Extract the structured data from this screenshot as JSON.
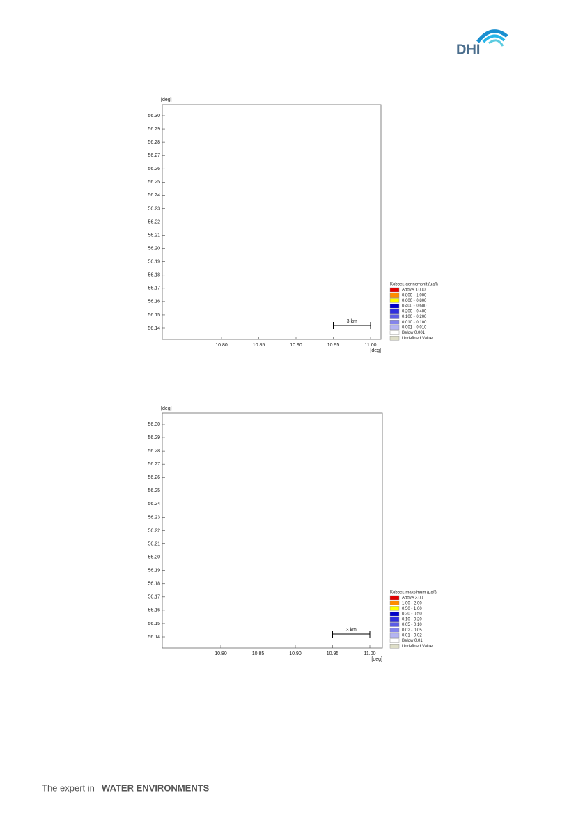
{
  "header": {
    "logo": "DHI"
  },
  "plots": [
    {
      "y_label": "[deg]",
      "x_label": "[deg]",
      "yticks": [
        "56.30",
        "56.29",
        "56.28",
        "56.27",
        "56.26",
        "56.25",
        "56.24",
        "56.23",
        "56.22",
        "56.21",
        "56.20",
        "56.19",
        "56.18",
        "56.17",
        "56.16",
        "56.15",
        "56.14"
      ],
      "xticks": [
        "10.80",
        "10.85",
        "10.90",
        "10.95",
        "11.00"
      ],
      "scale_bar": "3 km",
      "legend": {
        "title": "Kobber, gennemsnit (µg/l)",
        "items": [
          "Above  1.000",
          "0.800 - 1.000",
          "0.600 - 0.800",
          "0.400 - 0.600",
          "0.200 - 0.400",
          "0.100 - 0.200",
          "0.010 - 0.100",
          "0.001 - 0.010",
          "Below  0.001",
          "Undefined Value"
        ]
      }
    },
    {
      "y_label": "[deg]",
      "x_label": "[deg]",
      "yticks": [
        "56.30",
        "56.29",
        "56.28",
        "56.27",
        "56.26",
        "56.25",
        "56.24",
        "56.23",
        "56.22",
        "56.21",
        "56.20",
        "56.19",
        "56.18",
        "56.17",
        "56.16",
        "56.15",
        "56.14"
      ],
      "xticks": [
        "10.80",
        "10.85",
        "10.90",
        "10.95",
        "11.00"
      ],
      "scale_bar": "3 km",
      "legend": {
        "title": "Kobber, maksimum (µg/l)",
        "items": [
          "Above 2.00",
          "1.00 - 2.00",
          "0.50 - 1.00",
          "0.20 - 0.50",
          "0.10 - 0.20",
          "0.05 - 0.10",
          "0.02 - 0.05",
          "0.01 - 0.02",
          "Below 0.01",
          "Undefined Value"
        ]
      }
    }
  ],
  "footer": {
    "tagline": "The expert in",
    "emphasis": "WATER ENVIRONMENTS"
  }
}
